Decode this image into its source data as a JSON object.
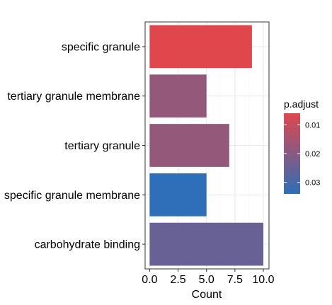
{
  "chart_data": {
    "type": "bar",
    "orientation": "horizontal",
    "categories": [
      "specific granule",
      "tertiary granule membrane",
      "tertiary granule",
      "specific granule membrane",
      "carbohydrate binding"
    ],
    "values": [
      9,
      5,
      7,
      5,
      10
    ],
    "p_adjust": [
      0.006,
      0.018,
      0.018,
      0.034,
      0.025
    ],
    "xlabel": "Count",
    "ylabel": "",
    "xlim": [
      -0.4,
      10.5
    ],
    "x_ticks": [
      "0.0",
      "2.5",
      "5.0",
      "7.5",
      "10.0"
    ],
    "x_tick_values": [
      0,
      2.5,
      5,
      7.5,
      10
    ],
    "grid": true,
    "legend": {
      "title": "p.adjust",
      "placement": "right",
      "ticks": [
        "0.01",
        "0.02",
        "0.03"
      ],
      "tick_values": [
        0.01,
        0.02,
        0.03
      ],
      "range": [
        0.006,
        0.034
      ],
      "color_low": "#e0474c",
      "color_high": "#2f6eb8"
    },
    "colors": {
      "low": "#e0474c",
      "high": "#2f6eb8",
      "panel_border": "#333333",
      "grid": "#ebebeb"
    }
  }
}
